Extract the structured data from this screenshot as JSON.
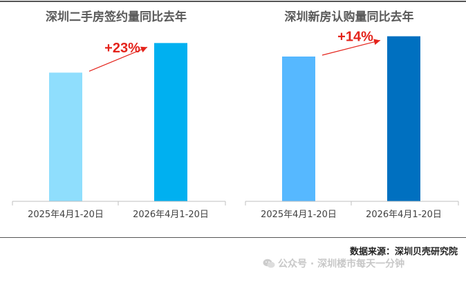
{
  "chart_data": [
    {
      "type": "bar",
      "title": "深圳二手房签约量同比去年",
      "categories": [
        "2025年4月1-20日",
        "2026年4月1-20日"
      ],
      "values": [
        100,
        123
      ],
      "colors": [
        "#8fdefd",
        "#00b0f0"
      ],
      "annotation": "+23%",
      "annotation_color": "#e4231b",
      "ylim": [
        0,
        135
      ],
      "grid": false
    },
    {
      "type": "bar",
      "title": "深圳新房认购量同比去年",
      "categories": [
        "2025年4月1-20日",
        "2026年4月1-20日"
      ],
      "values": [
        100,
        114
      ],
      "colors": [
        "#56b8ff",
        "#0070c0"
      ],
      "annotation": "+14%",
      "annotation_color": "#e4231b",
      "ylim": [
        0,
        120
      ],
      "grid": false
    }
  ],
  "footer": {
    "source": "数据来源：深圳贝壳研究院",
    "watermark": "公众号 · 深圳楼市每天一分钟"
  }
}
